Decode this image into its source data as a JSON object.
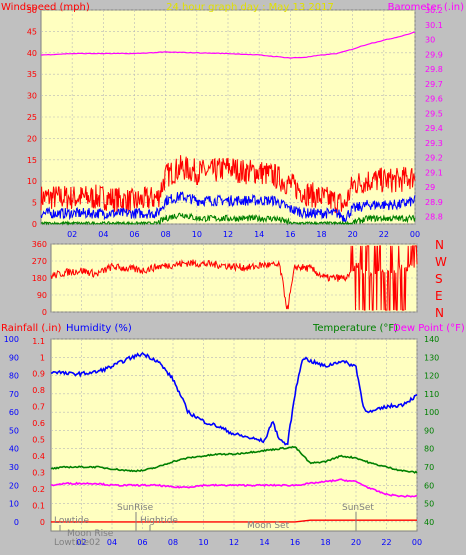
{
  "header": {
    "left_label": "Windspeed (mph)",
    "title": "24 hour graph day : May 13 2017",
    "right_label": "Barometer (.in)"
  },
  "colors": {
    "background": "#c0c0c0",
    "plot_bg": "#ffffc0",
    "grid": "#b8b8b8",
    "axis_left": "#ff0000",
    "axis_right": "#ff00ff",
    "title": "#e0e000",
    "wind_gust": "#ff0000",
    "wind_avg": "#0000ff",
    "wind_low": "#008000",
    "barometer": "#ff00ff",
    "direction": "#ff0000",
    "humidity": "#0000ff",
    "temperature": "#008000",
    "dew_point": "#ff00ff",
    "rainfall": "#ff0000"
  },
  "events": {
    "sunrise": "SunRise",
    "sunset": "SunSet",
    "hightide": "Hightide",
    "lowtide": "Lowtide",
    "moonrise": "Moon Rise",
    "moonset": "Moon Set",
    "lowtide2": "Lowtide02"
  },
  "chart_data": [
    {
      "id": "wind_baro",
      "type": "line",
      "x_ticks": [
        "02",
        "04",
        "06",
        "08",
        "10",
        "12",
        "14",
        "16",
        "18",
        "20",
        "22",
        "00"
      ],
      "y_left_label": "Windspeed (mph)",
      "y_left_range": [
        0,
        50
      ],
      "y_left_ticks": [
        0,
        5,
        10,
        15,
        20,
        25,
        30,
        35,
        40,
        45,
        50
      ],
      "y_right_label": "Barometer (.in)",
      "y_right_range": [
        28.75,
        30.2
      ],
      "y_right_ticks": [
        "28.8",
        "28.9",
        "29",
        "29.1",
        "29.2",
        "29.3",
        "29.4",
        "29.5",
        "29.6",
        "29.7",
        "29.8",
        "29.9",
        "30",
        "30.1",
        "30.2"
      ],
      "series": [
        {
          "name": "Windspeed (mph)",
          "x": [
            0,
            2,
            4,
            6,
            7.5,
            8,
            9,
            10,
            11,
            12,
            13,
            14,
            15,
            16,
            17,
            18,
            19,
            19.5,
            20,
            21,
            22,
            23,
            24
          ],
          "y_low": [
            0,
            0,
            0,
            0,
            0,
            1,
            2,
            1,
            1,
            1,
            1,
            1,
            1,
            0,
            0,
            0,
            0,
            0,
            0,
            1,
            1,
            1,
            1
          ],
          "y_avg": [
            2,
            2,
            2,
            2,
            2,
            5,
            6,
            5,
            5,
            5,
            5,
            5,
            5,
            3,
            2,
            2,
            2,
            1,
            3,
            4,
            4,
            4,
            5
          ],
          "y_gust": [
            5,
            5,
            5,
            4,
            5,
            10,
            12,
            11,
            11,
            12,
            11,
            11,
            10,
            8,
            6,
            5,
            4,
            3,
            8,
            9,
            9,
            9,
            10
          ]
        },
        {
          "name": "Barometer (.in)",
          "x": [
            0,
            1,
            2,
            4,
            6,
            8,
            10,
            12,
            14,
            16,
            17,
            18,
            19,
            20,
            21,
            22,
            23,
            24
          ],
          "y": [
            29.895,
            29.9,
            29.905,
            29.905,
            29.905,
            29.915,
            29.91,
            29.905,
            29.895,
            29.875,
            29.88,
            29.895,
            29.905,
            29.935,
            29.97,
            29.995,
            30.02,
            30.05
          ]
        }
      ]
    },
    {
      "id": "direction",
      "type": "scatter",
      "x_ticks": [
        "02",
        "04",
        "06",
        "08",
        "10",
        "12",
        "14",
        "16",
        "18",
        "20",
        "22",
        "00"
      ],
      "y_left_ticks": [
        "0",
        "90",
        "180",
        "270",
        "360"
      ],
      "y_range": [
        0,
        360
      ],
      "y_right_ticks": [
        "N",
        "W",
        "S",
        "E",
        "N"
      ],
      "series": [
        {
          "name": "Wind direction",
          "x": [
            0,
            1,
            2,
            3,
            4,
            5,
            6,
            7,
            8,
            9,
            10,
            11,
            12,
            13,
            14,
            15,
            15.5,
            16,
            17,
            18,
            19,
            19.5,
            20,
            21,
            22,
            23,
            24
          ],
          "y": [
            190,
            210,
            220,
            200,
            240,
            230,
            220,
            240,
            250,
            260,
            255,
            250,
            240,
            235,
            250,
            245,
            10,
            240,
            230,
            180,
            180,
            180,
            250,
            200,
            220,
            230,
            240
          ]
        }
      ]
    },
    {
      "id": "temp_hum",
      "type": "line",
      "x_ticks": [
        "02",
        "04",
        "06",
        "08",
        "10",
        "12",
        "14",
        "16",
        "18",
        "20",
        "22",
        "00"
      ],
      "y_left1_label": "Rainfall (.in)",
      "y_left1_ticks": [
        "0",
        "0.1",
        "0.2",
        "0.3",
        "0.4",
        "0.5",
        "0.6",
        "0.7",
        "0.8",
        "0.9",
        "1",
        "1.1"
      ],
      "y_left2_label": "Humidity (%)",
      "y_left2_ticks": [
        "0",
        "10",
        "20",
        "30",
        "40",
        "50",
        "60",
        "70",
        "80",
        "90",
        "100"
      ],
      "y_right_label1": "Temperature (°F)",
      "y_right_label2": "Dew Point (°F)",
      "y_right_ticks": [
        "40",
        "50",
        "60",
        "70",
        "80",
        "90",
        "100",
        "110",
        "120",
        "130",
        "140"
      ],
      "temp_range": [
        35,
        140
      ],
      "series": [
        {
          "name": "Humidity (%)",
          "x": [
            0,
            0.5,
            1,
            2,
            3,
            4,
            5,
            6,
            7,
            8,
            9,
            10,
            11,
            12,
            13,
            14,
            14.5,
            15,
            15.5,
            16,
            16.5,
            17,
            18,
            19,
            20,
            20.5,
            21,
            22,
            23,
            24
          ],
          "y": [
            82,
            82,
            81,
            81,
            82,
            85,
            89,
            92,
            88,
            78,
            60,
            55,
            52,
            48,
            46,
            44,
            55,
            45,
            42,
            70,
            90,
            88,
            85,
            88,
            85,
            62,
            60,
            63,
            64,
            69
          ]
        },
        {
          "name": "Temperature (°F)",
          "x": [
            0,
            1,
            2,
            3,
            4,
            5,
            6,
            7,
            8,
            9,
            10,
            11,
            12,
            13,
            14,
            15,
            16,
            17,
            18,
            19,
            20,
            21,
            22,
            23,
            24
          ],
          "y": [
            69,
            70,
            70,
            70,
            69,
            68,
            68,
            70,
            73,
            75,
            76,
            77,
            77,
            78,
            79,
            80,
            81,
            72,
            73,
            76,
            75,
            72,
            70,
            68,
            67
          ]
        },
        {
          "name": "Dew Point (°F)",
          "x": [
            0,
            1,
            2,
            3,
            4,
            5,
            6,
            7,
            8,
            9,
            10,
            11,
            12,
            13,
            14,
            15,
            16,
            17,
            18,
            19,
            20,
            21,
            22,
            23,
            24
          ],
          "y": [
            60,
            61,
            61,
            61,
            60,
            60,
            60,
            60,
            59,
            59,
            60,
            60,
            60,
            60,
            60,
            60,
            60,
            61,
            62,
            63,
            62,
            58,
            55,
            54,
            54
          ]
        },
        {
          "name": "Rainfall (.in)",
          "x": [
            0,
            16,
            17,
            24
          ],
          "y": [
            0,
            0,
            0.01,
            0.01
          ]
        }
      ]
    }
  ]
}
